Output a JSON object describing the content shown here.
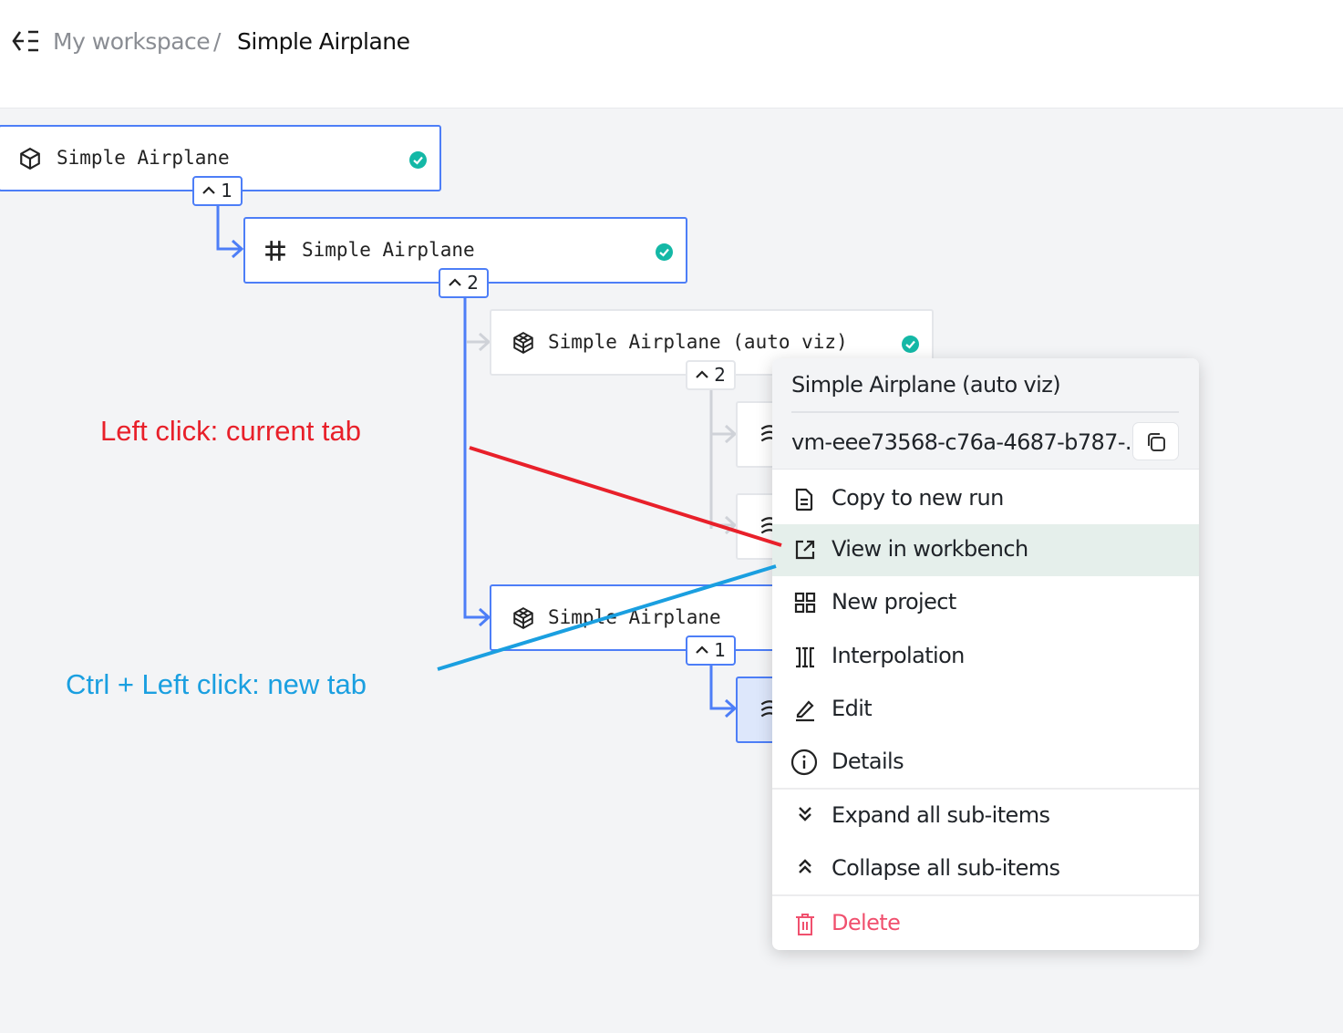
{
  "header": {
    "back_icon": "collapse-left-icon",
    "workspace": "My workspace",
    "separator": "/",
    "current": "Simple Airplane"
  },
  "nodes": [
    {
      "label": "Simple Airplane",
      "icon": "cube-icon",
      "status": "success",
      "badge": "1",
      "selected": true
    },
    {
      "label": "Simple Airplane",
      "icon": "grid-icon",
      "status": "success",
      "badge": "2",
      "selected": true
    },
    {
      "label": "Simple Airplane (auto viz)",
      "icon": "package-icon",
      "status": "success",
      "badge": "2",
      "selected": false
    },
    {
      "label": "Simple Airplane",
      "icon": "package-icon",
      "badge": "1",
      "selected": true
    }
  ],
  "menu": {
    "title": "Simple Airplane (auto viz)",
    "id": "vm-eee73568-c76a-4687-b787-...",
    "items": [
      {
        "label": "Copy to new run",
        "icon": "document-icon"
      },
      {
        "label": "View in workbench",
        "icon": "external-link-icon"
      },
      {
        "label": "New project",
        "icon": "grid-icon"
      },
      {
        "label": "Interpolation",
        "icon": "interpolation-icon"
      },
      {
        "label": "Edit",
        "icon": "pencil-icon"
      },
      {
        "label": "Details",
        "icon": "info-icon"
      },
      {
        "label": "Expand all sub-items",
        "icon": "chevrons-down-icon"
      },
      {
        "label": "Collapse all sub-items",
        "icon": "chevrons-up-icon"
      },
      {
        "label": "Delete",
        "icon": "trash-icon"
      }
    ]
  },
  "annotations": {
    "left_click": "Left click: current tab",
    "ctrl_click": "Ctrl + Left click: new tab"
  },
  "colors": {
    "accent": "#4d7ef7",
    "success": "#14b8a6",
    "danger": "#f0506e",
    "annotation_red": "#e8202a",
    "annotation_blue": "#1a9fe0",
    "highlight": "#e5efeb"
  }
}
